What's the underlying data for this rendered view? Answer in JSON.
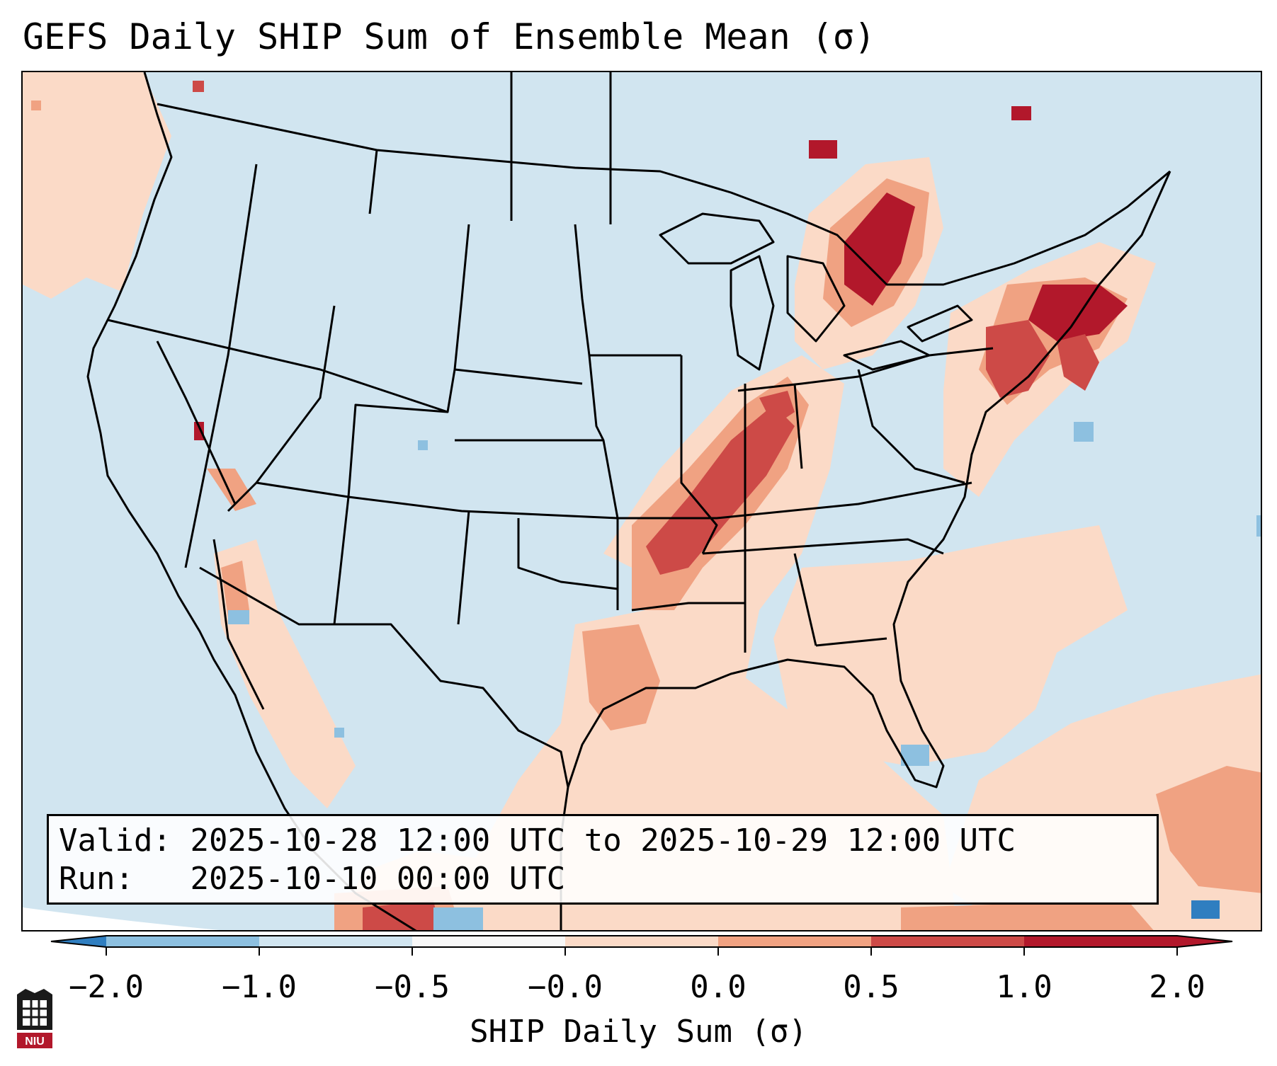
{
  "title": "GEFS Daily SHIP Sum of Ensemble Mean (σ)",
  "info": {
    "valid_label": "Valid:",
    "valid_value": "2025-10-28 12:00 UTC to 2025-10-29 12:00 UTC",
    "run_label": "Run:",
    "run_value": "2025-10-10 00:00 UTC"
  },
  "colorbar": {
    "label": "SHIP Daily Sum (σ)",
    "ticks": [
      "−2.0",
      "−1.0",
      "−0.5",
      "−0.0",
      "0.0",
      "0.5",
      "1.0",
      "2.0"
    ],
    "colors": [
      "#2f7ec0",
      "#8dc0e0",
      "#d1e5f0",
      "#f8f8f8",
      "#fbdac7",
      "#f0a282",
      "#cd4a47",
      "#b2182b"
    ],
    "extend": "both"
  },
  "colors": {
    "background_field": "#d1e5f0",
    "light_red": "#fbdac7",
    "medium_red": "#f0a282",
    "dark_red": "#cd4a47",
    "darkest_red": "#b2182b",
    "light_blue": "#8dc0e0",
    "medium_blue": "#2f7ec0",
    "lines": "#000000"
  },
  "logo": {
    "text": "NIU"
  }
}
